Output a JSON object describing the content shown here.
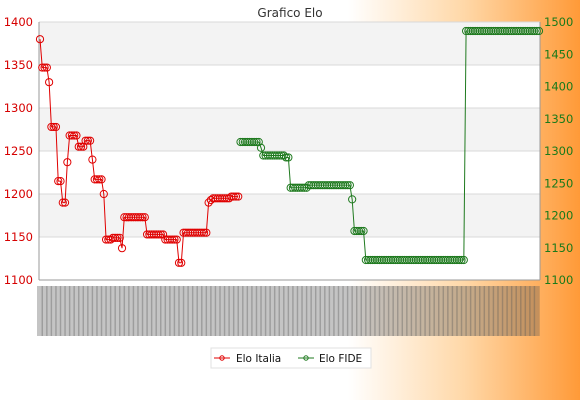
{
  "chart_data": {
    "type": "line",
    "title": "Grafico Elo",
    "y_left": {
      "min": 1100,
      "max": 1400,
      "ticks": [
        1100,
        1150,
        1200,
        1250,
        1300,
        1350,
        1400
      ]
    },
    "y_right": {
      "min": 1100,
      "max": 1500,
      "ticks": [
        1100,
        1150,
        1200,
        1250,
        1300,
        1350,
        1400,
        1450,
        1500
      ]
    },
    "grid": true,
    "legend_position": "bottom-center",
    "series": [
      {
        "name": "Elo Italia",
        "axis": "left",
        "color": "#e00000",
        "values": [
          1380,
          1347,
          1347,
          1347,
          1330,
          1278,
          1278,
          1278,
          1215,
          1215,
          1190,
          1190,
          1237,
          1268,
          1268,
          1268,
          1268,
          1255,
          1255,
          1255,
          1262,
          1262,
          1262,
          1240,
          1217,
          1217,
          1217,
          1217,
          1200,
          1147,
          1147,
          1147,
          1149,
          1149,
          1149,
          1149,
          1137,
          1173,
          1173,
          1173,
          1173,
          1173,
          1173,
          1173,
          1173,
          1173,
          1173,
          1153,
          1153,
          1153,
          1153,
          1153,
          1153,
          1153,
          1153,
          1147,
          1147,
          1147,
          1147,
          1147,
          1147,
          1120,
          1120,
          1155,
          1155,
          1155,
          1155,
          1155,
          1155,
          1155,
          1155,
          1155,
          1155,
          1155,
          1190,
          1193,
          1195,
          1195,
          1195,
          1195,
          1195,
          1195,
          1195,
          1195,
          1197,
          1197,
          1197,
          1197
        ]
      },
      {
        "name": "Elo FIDE",
        "axis": "right",
        "color": "#1f7a1f",
        "start_index": 88,
        "values": [
          1314,
          1314,
          1314,
          1314,
          1314,
          1314,
          1314,
          1314,
          1314,
          1305,
          1293,
          1293,
          1293,
          1293,
          1293,
          1293,
          1293,
          1293,
          1293,
          1293,
          1290,
          1290,
          1243,
          1243,
          1243,
          1243,
          1243,
          1243,
          1243,
          1243,
          1247,
          1247,
          1247,
          1247,
          1247,
          1247,
          1247,
          1247,
          1247,
          1247,
          1247,
          1247,
          1247,
          1247,
          1247,
          1247,
          1247,
          1247,
          1247,
          1225,
          1176,
          1176,
          1176,
          1176,
          1176,
          1131,
          1131,
          1131,
          1131,
          1131,
          1131,
          1131,
          1131,
          1131,
          1131,
          1131,
          1131,
          1131,
          1131,
          1131,
          1131,
          1131,
          1131,
          1131,
          1131,
          1131,
          1131,
          1131,
          1131,
          1131,
          1131,
          1131,
          1131,
          1131,
          1131,
          1131,
          1131,
          1131,
          1131,
          1131,
          1131,
          1131,
          1131,
          1131,
          1131,
          1131,
          1131,
          1131,
          1131,
          1486,
          1486,
          1486,
          1486,
          1486,
          1486,
          1486,
          1486,
          1486,
          1486,
          1486,
          1486,
          1486,
          1486,
          1486,
          1486,
          1486,
          1486,
          1486,
          1486,
          1486,
          1486,
          1486,
          1486,
          1486,
          1486,
          1486,
          1486,
          1486,
          1486,
          1486,
          1486,
          1486
        ]
      }
    ],
    "legend": [
      "Elo Italia",
      "Elo FIDE"
    ]
  }
}
